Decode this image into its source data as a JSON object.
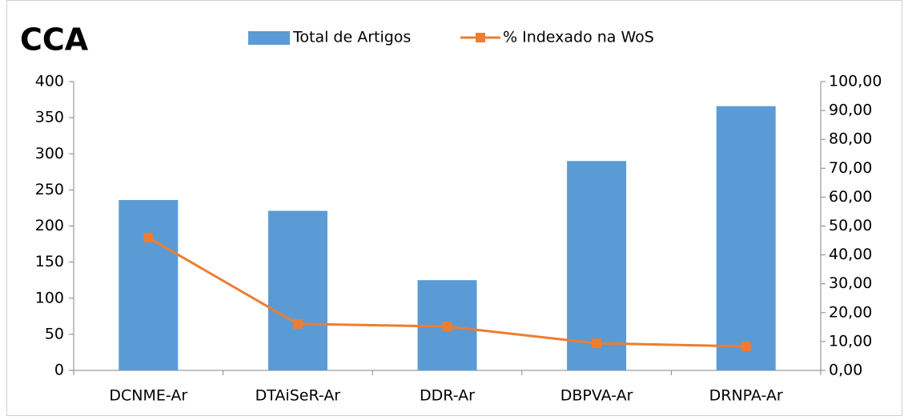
{
  "chart_data": {
    "type": "bar_line",
    "title": "CCA",
    "categories": [
      "DCNME-Ar",
      "DTAiSeR-Ar",
      "DDR-Ar",
      "DBPVA-Ar",
      "DRNPA-Ar"
    ],
    "series": [
      {
        "name": "Total de Artigos",
        "color": "#5b9bd5",
        "type": "bar",
        "values": [
          236,
          221,
          125,
          290,
          366
        ]
      },
      {
        "name": "% Indexado na WoS",
        "color": "#ed7d31",
        "type": "line",
        "axis": "y2",
        "values": [
          46.0,
          16.1,
          15.2,
          9.4,
          8.3
        ]
      }
    ],
    "ylim": [
      0,
      400
    ],
    "yticks": [
      0,
      50,
      100,
      150,
      200,
      250,
      300,
      350,
      400
    ],
    "y2lim": [
      0,
      100
    ],
    "y2ticks": [
      {
        "value": 0,
        "label": "0,00"
      },
      {
        "value": 10,
        "label": "10,00"
      },
      {
        "value": 20,
        "label": "20,00"
      },
      {
        "value": 30,
        "label": "30,00"
      },
      {
        "value": 40,
        "label": "40,00"
      },
      {
        "value": 50,
        "label": "50,00"
      },
      {
        "value": 60,
        "label": "60,00"
      },
      {
        "value": 70,
        "label": "70,00"
      },
      {
        "value": 80,
        "label": "80,00"
      },
      {
        "value": 90,
        "label": "90,00"
      },
      {
        "value": 100,
        "label": "100,00"
      }
    ],
    "grid": false,
    "legend": "top"
  }
}
